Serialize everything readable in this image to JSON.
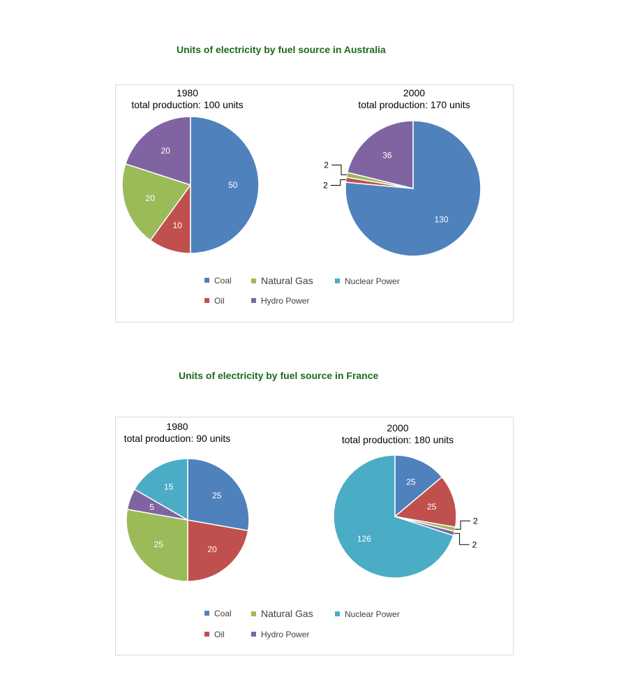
{
  "chart_data": [
    {
      "type": "pie",
      "title": "Units of electricity by fuel source in Australia",
      "legend": [
        "Coal",
        "Natural Gas",
        "Nuclear Power",
        "Oil",
        "Hydro Power"
      ],
      "pies": [
        {
          "year": "1980",
          "total_label": "total production: 100 units",
          "slices": [
            {
              "category": "Coal",
              "value": 50
            },
            {
              "category": "Oil",
              "value": 10
            },
            {
              "category": "Natural Gas",
              "value": 20
            },
            {
              "category": "Hydro Power",
              "value": 20
            }
          ]
        },
        {
          "year": "2000",
          "total_label": "total production: 170 units",
          "slices": [
            {
              "category": "Coal",
              "value": 130
            },
            {
              "category": "Oil",
              "value": 2
            },
            {
              "category": "Natural Gas",
              "value": 2
            },
            {
              "category": "Hydro Power",
              "value": 36
            }
          ]
        }
      ]
    },
    {
      "type": "pie",
      "title": "Units of electricity by fuel source in France",
      "legend": [
        "Coal",
        "Natural Gas",
        "Nuclear Power",
        "Oil",
        "Hydro Power"
      ],
      "pies": [
        {
          "year": "1980",
          "total_label": "total production: 90 units",
          "slices": [
            {
              "category": "Coal",
              "value": 25
            },
            {
              "category": "Oil",
              "value": 20
            },
            {
              "category": "Natural Gas",
              "value": 25
            },
            {
              "category": "Hydro Power",
              "value": 5
            },
            {
              "category": "Nuclear Power",
              "value": 15
            }
          ]
        },
        {
          "year": "2000",
          "total_label": "total production: 180 units",
          "slices": [
            {
              "category": "Coal",
              "value": 25
            },
            {
              "category": "Oil",
              "value": 25
            },
            {
              "category": "Natural Gas",
              "value": 2
            },
            {
              "category": "Hydro Power",
              "value": 2
            },
            {
              "category": "Nuclear Power",
              "value": 126
            }
          ]
        }
      ]
    }
  ],
  "colors": {
    "Coal": "#4f81bd",
    "Oil": "#c0504d",
    "Natural Gas": "#9bbb59",
    "Hydro Power": "#8064a2",
    "Nuclear Power": "#4bacc6"
  }
}
